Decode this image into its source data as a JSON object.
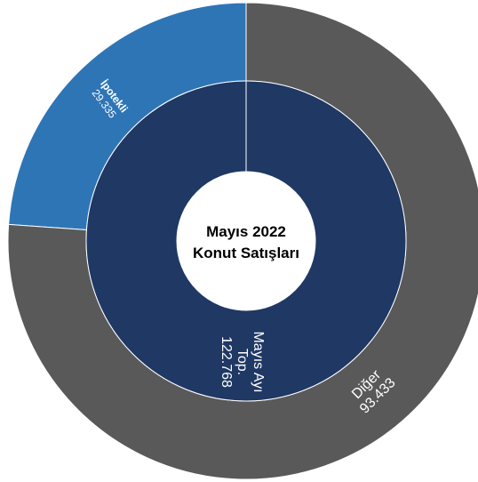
{
  "chart_data": {
    "type": "pie",
    "title_lines": [
      "Mayıs 2022",
      "Konut Satışları"
    ],
    "inner": {
      "labels": [
        "Mayıs Ayı",
        "Top.",
        "122.768"
      ],
      "value": 122768,
      "color": "#1f3864"
    },
    "outer": [
      {
        "name": "İpotekli",
        "value_label": "29.335",
        "value": 29335,
        "color": "#2e75b6"
      },
      {
        "name": "Diğer",
        "value_label": "93.433",
        "value": 93433,
        "color": "#595959"
      }
    ]
  }
}
